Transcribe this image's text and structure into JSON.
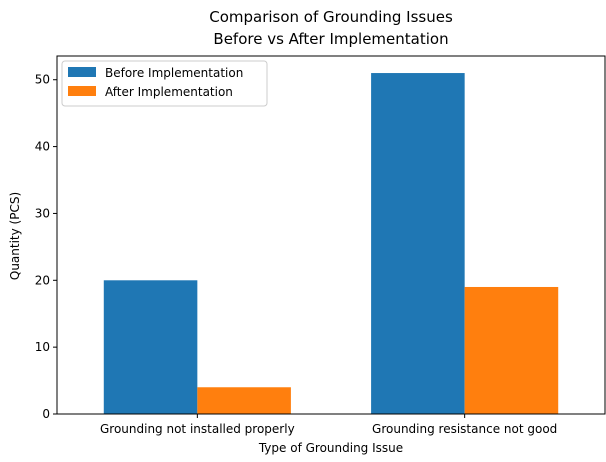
{
  "chart_data": {
    "type": "bar",
    "title_lines": [
      "Comparison of Grounding Issues",
      "Before vs After Implementation"
    ],
    "xlabel": "Type of Grounding Issue",
    "ylabel": "Quantity (PCS)",
    "categories": [
      "Grounding not installed properly",
      "Grounding resistance not good"
    ],
    "series": [
      {
        "name": "Before Implementation",
        "values": [
          20,
          51
        ],
        "color": "#1f77b4"
      },
      {
        "name": "After Implementation",
        "values": [
          4,
          19
        ],
        "color": "#ff7f0e"
      }
    ],
    "ylim": [
      0,
      53.55
    ],
    "yticks": [
      0,
      10,
      20,
      30,
      40,
      50
    ],
    "grid": false,
    "legend_position": "upper-left"
  }
}
